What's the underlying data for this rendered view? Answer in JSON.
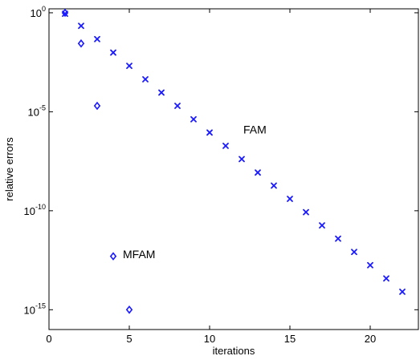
{
  "chart_data": {
    "type": "scatter",
    "title": "",
    "xlabel": "iterations",
    "ylabel": "relative errors",
    "xlim": [
      0,
      23
    ],
    "ylim": [
      -16,
      0.2
    ],
    "yscale": "log",
    "grid": false,
    "x_ticks": [
      {
        "value": 0,
        "label": "0"
      },
      {
        "value": 5,
        "label": "5"
      },
      {
        "value": 10,
        "label": "10"
      },
      {
        "value": 15,
        "label": "15"
      },
      {
        "value": 20,
        "label": "20"
      }
    ],
    "y_ticks": [
      {
        "exp": 0,
        "base": "10",
        "sup": "0"
      },
      {
        "exp": -5,
        "base": "10",
        "sup": "-5"
      },
      {
        "exp": -10,
        "base": "10",
        "sup": "-10"
      },
      {
        "exp": -15,
        "base": "10",
        "sup": "-15"
      }
    ],
    "annotations": [
      {
        "text": "FAM",
        "x": 12.1,
        "y_exp": -5.9
      },
      {
        "text": "MFAM",
        "x": 4.6,
        "y_exp": -12.2
      }
    ],
    "series": [
      {
        "marker": "x",
        "color": "#1a1aff",
        "x": [
          1,
          2,
          3,
          4,
          5,
          6,
          7,
          8,
          9,
          10,
          11,
          12,
          13,
          14,
          15,
          16,
          17,
          18,
          19,
          20,
          21,
          22
        ],
        "y_exp": [
          -0.05,
          -0.66,
          -1.33,
          -2.01,
          -2.68,
          -3.36,
          -4.03,
          -4.7,
          -5.38,
          -6.05,
          -6.72,
          -7.39,
          -8.07,
          -8.73,
          -9.4,
          -10.07,
          -10.74,
          -11.41,
          -12.08,
          -12.75,
          -13.42,
          -14.09
        ]
      },
      {
        "marker": "diamond",
        "color": "#1a1aff",
        "x": [
          1,
          2,
          3,
          4,
          5
        ],
        "y_exp": [
          0.0,
          -1.55,
          -4.7,
          -12.3,
          -15.0
        ]
      }
    ]
  }
}
